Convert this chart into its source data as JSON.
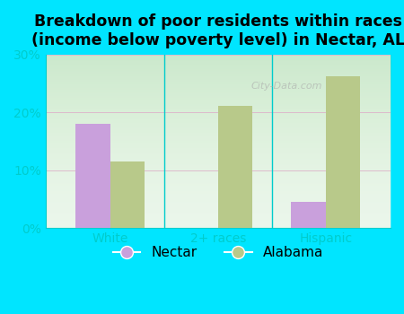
{
  "title": "Breakdown of poor residents within races\n(income below poverty level) in Nectar, AL",
  "categories": [
    "White",
    "2+ races",
    "Hispanic"
  ],
  "nectar_values": [
    18.0,
    0,
    4.5
  ],
  "alabama_values": [
    11.5,
    21.2,
    26.2
  ],
  "nectar_color": "#c9a0dc",
  "alabama_color": "#b8c98a",
  "ylim": [
    0,
    30
  ],
  "yticks": [
    0,
    10,
    20,
    30
  ],
  "yticklabels": [
    "0%",
    "10%",
    "20%",
    "30%"
  ],
  "bar_width": 0.32,
  "title_fontsize": 12.5,
  "legend_labels": [
    "Nectar",
    "Alabama"
  ],
  "watermark": "City-Data.com",
  "outer_bg": "#00e5ff",
  "plot_bg_top": "#f0f8f0",
  "plot_bg_bottom": "#d8eed8",
  "tick_color": "#00cccc",
  "spine_color": "#00cccc"
}
